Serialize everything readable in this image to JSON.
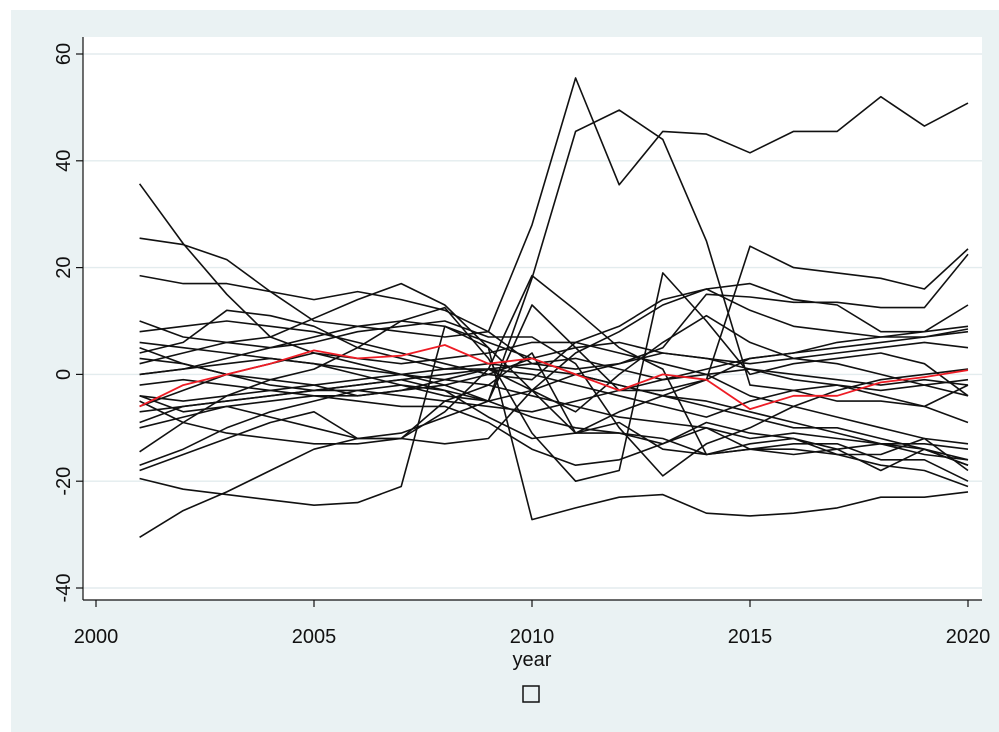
{
  "chart_data": {
    "type": "line",
    "xlabel": "year",
    "ylabel": "",
    "title": "",
    "xlim": [
      2000,
      2020
    ],
    "ylim": [
      -40,
      60
    ],
    "xticks": [
      2000,
      2005,
      2010,
      2015,
      2020
    ],
    "yticks": [
      -40,
      -20,
      0,
      20,
      40,
      60
    ],
    "xtick_labels": [
      "2000",
      "2005",
      "2010",
      "2015",
      "2020"
    ],
    "ytick_labels": [
      "-40",
      "-20",
      "0",
      "20",
      "40",
      "60"
    ],
    "grid": true,
    "legend_position": "bottom",
    "legend_entries": [
      ""
    ],
    "x": [
      2001,
      2002,
      2003,
      2004,
      2005,
      2006,
      2007,
      2008,
      2009,
      2010,
      2011,
      2012,
      2013,
      2014,
      2015,
      2016,
      2017,
      2018,
      2019,
      2020
    ],
    "highlight_color": "#ee1c25",
    "series_color": "#111111",
    "highlight": {
      "values": [
        -6,
        -2,
        0,
        2,
        4.5,
        3,
        3.5,
        5.5,
        2,
        3,
        0,
        -3,
        0,
        -1,
        -6.5,
        -4,
        -4,
        -1.5,
        -0.5,
        0.8
      ]
    },
    "series": [
      {
        "values": [
          35.7,
          24.5,
          15,
          7,
          4,
          2,
          0,
          -2,
          -5,
          -8,
          -10,
          -11,
          -12,
          -15,
          -14,
          -15,
          -14,
          -13,
          -14,
          -16
        ]
      },
      {
        "values": [
          25.5,
          24.3,
          21.5,
          15.5,
          10,
          9,
          8,
          7,
          8,
          28,
          55.5,
          35.5,
          45.5,
          45,
          41.5,
          45.5,
          45.5,
          52,
          46.5,
          50.8
        ]
      },
      {
        "values": [
          18.5,
          17,
          17,
          15.5,
          14,
          15.5,
          14,
          12,
          8,
          2,
          1,
          2,
          5,
          15,
          14.5,
          13.5,
          13.5,
          12.5,
          12.5,
          22.5
        ]
      },
      {
        "values": [
          -30.5,
          -25.5,
          -22,
          -18,
          -14,
          -12,
          -11,
          -8,
          -5,
          18,
          45.5,
          49.5,
          44,
          25,
          -2,
          -3,
          -5,
          -5,
          -6,
          -2
        ]
      },
      {
        "values": [
          -19.5,
          -21.5,
          -22.5,
          -23.5,
          -24.5,
          -24,
          -21,
          9,
          5,
          -27.2,
          -25,
          -23,
          -22.5,
          -26,
          -26.5,
          -26,
          -25,
          -23,
          -23,
          -22
        ]
      },
      {
        "values": [
          -18,
          -15,
          -12,
          -9,
          -7,
          -12,
          -12,
          -5,
          -2,
          4,
          -11,
          -11,
          -13,
          -9,
          -11,
          -12,
          -15,
          -15,
          -12,
          -18
        ]
      },
      {
        "values": [
          -14.5,
          -9,
          -4,
          -1,
          1,
          5,
          10,
          12.5,
          3,
          -11,
          -20,
          -18,
          19,
          10,
          0,
          2,
          3,
          4,
          2,
          -4
        ]
      },
      {
        "values": [
          10,
          7,
          6,
          5,
          6,
          8,
          9,
          10,
          7,
          7,
          2,
          -10,
          -19,
          -13,
          -10,
          -6,
          -3,
          -1,
          0,
          1
        ]
      },
      {
        "values": [
          4,
          6,
          12,
          11,
          9,
          5,
          3,
          1,
          1,
          -3,
          -11,
          -9,
          -14,
          -15,
          -13,
          -12,
          -14,
          -18,
          -14,
          -17
        ]
      },
      {
        "values": [
          -4,
          -7,
          -6,
          -8,
          -10,
          -12,
          -12,
          -13,
          -12,
          -3,
          4,
          8,
          13,
          16,
          17,
          14,
          13,
          8,
          8,
          9
        ]
      },
      {
        "values": [
          -9,
          -6,
          -5,
          -4,
          -3,
          -2,
          -1,
          -3,
          -5,
          13,
          5,
          -3,
          -3,
          -1,
          24,
          20,
          19,
          18,
          16,
          23.5
        ]
      },
      {
        "values": [
          -5,
          -9,
          -11,
          -12,
          -13,
          -13,
          -12,
          -7,
          1,
          18.5,
          12,
          5,
          1,
          -15,
          -14,
          -13,
          -13,
          -16,
          -16,
          -20
        ]
      },
      {
        "values": [
          8,
          9,
          10,
          9,
          8,
          6,
          4,
          2,
          0,
          -1,
          6,
          9,
          14,
          16,
          12,
          9,
          8,
          7,
          7,
          8
        ]
      },
      {
        "values": [
          -6,
          -3,
          0,
          2,
          4,
          3,
          2,
          3,
          4,
          6,
          6,
          4,
          2,
          0,
          -4,
          -6,
          -8,
          -10,
          -12,
          -13
        ]
      },
      {
        "values": [
          0,
          1,
          2,
          3,
          2,
          0,
          -2,
          -4,
          -5,
          -3,
          0,
          -2,
          -4,
          -6,
          -8,
          -10,
          -10,
          -12,
          -14,
          -17
        ]
      },
      {
        "values": [
          -17,
          -14,
          -10,
          -7,
          -5,
          -3,
          -2,
          -3,
          -8,
          -12,
          -11,
          -7,
          -4,
          -1,
          3,
          4,
          5,
          6,
          7,
          8.5
        ]
      },
      {
        "values": [
          5,
          2,
          0,
          -2,
          -3,
          -2,
          -1,
          0,
          1,
          0,
          -2,
          -4,
          -6,
          -8,
          -5,
          -3,
          -2,
          -4,
          -6,
          -9
        ]
      },
      {
        "values": [
          2,
          4,
          6,
          7,
          10.5,
          14,
          17,
          13,
          5,
          -3,
          -7,
          0,
          6,
          11,
          6,
          3,
          2,
          0,
          -2,
          -4
        ]
      },
      {
        "values": [
          -2,
          -1,
          -2,
          -3,
          -4,
          -5,
          -6,
          -6,
          -9,
          -14,
          -17,
          -16,
          -13,
          -10,
          -12,
          -11,
          -12,
          -13,
          -13,
          -14
        ]
      },
      {
        "values": [
          -10,
          -8,
          -6,
          -5,
          -4,
          -4,
          -3,
          -2,
          0,
          3,
          5,
          6,
          4,
          3,
          2,
          3,
          4,
          5,
          6,
          5
        ]
      },
      {
        "values": [
          3,
          2,
          0,
          -1,
          -2,
          -4,
          -3,
          -1,
          1,
          2,
          3,
          1,
          -1,
          0,
          1,
          -1,
          -2,
          -3,
          -2,
          -1
        ]
      },
      {
        "values": [
          0,
          1,
          3,
          5,
          7,
          9,
          10,
          9,
          6,
          3,
          0,
          -2,
          -4,
          -5,
          -7,
          -9,
          -11,
          -13,
          -15,
          -16
        ]
      },
      {
        "values": [
          -4,
          -5,
          -4,
          -3,
          -2,
          -1,
          0,
          1,
          2,
          1,
          0,
          2,
          4,
          3,
          1,
          0,
          -1,
          -2,
          -1,
          -2
        ]
      },
      {
        "values": [
          6,
          5,
          4,
          3,
          2,
          1,
          0,
          -1,
          -2,
          -4,
          -6,
          -8,
          -9,
          -10,
          -14,
          -14,
          -15,
          -17,
          -18,
          -21
        ]
      },
      {
        "values": [
          -7,
          -6,
          -5,
          -4,
          -3,
          -3,
          -4,
          -5,
          -6,
          -7,
          -5,
          -3,
          -1,
          1,
          3,
          4,
          6,
          7,
          8,
          13
        ]
      }
    ]
  }
}
